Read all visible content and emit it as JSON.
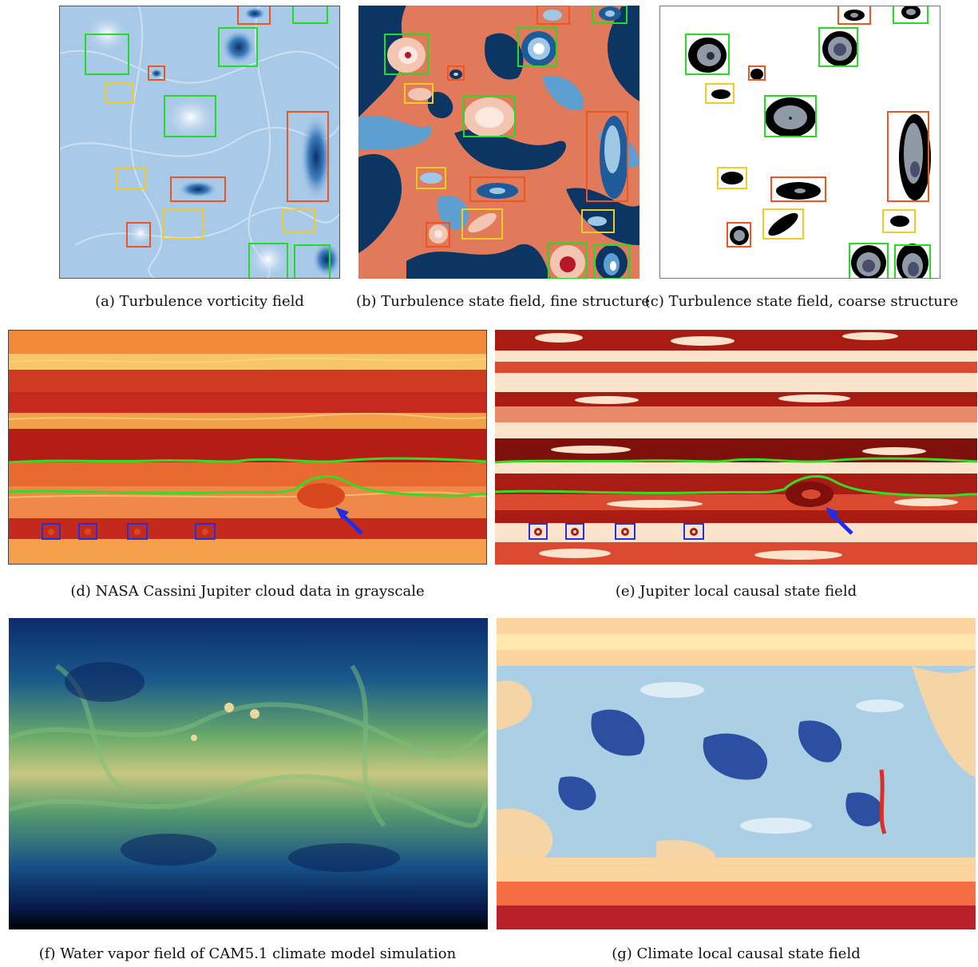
{
  "figure": {
    "panels": [
      {
        "id": "a",
        "caption": "(a) Turbulence vorticity field"
      },
      {
        "id": "b",
        "caption": "(b) Turbulence state field, fine structure"
      },
      {
        "id": "c",
        "caption": "(c) Turbulence state field, coarse structure"
      },
      {
        "id": "d",
        "caption": "(d) NASA Cassini Jupiter cloud data in grayscale"
      },
      {
        "id": "e",
        "caption": "(e) Jupiter local causal state field"
      },
      {
        "id": "f",
        "caption": "(f) Water vapor field of CAM5.1 climate model simulation"
      },
      {
        "id": "g",
        "caption": "(g) Climate local causal state field"
      }
    ]
  },
  "colors": {
    "box_green": "#22dd22",
    "box_orange": "#ee5522",
    "box_yellow": "#f2cc22",
    "box_blue": "#2233dd",
    "contour_green": "#33dd22",
    "arrow_blue": "#1f2ee6"
  }
}
